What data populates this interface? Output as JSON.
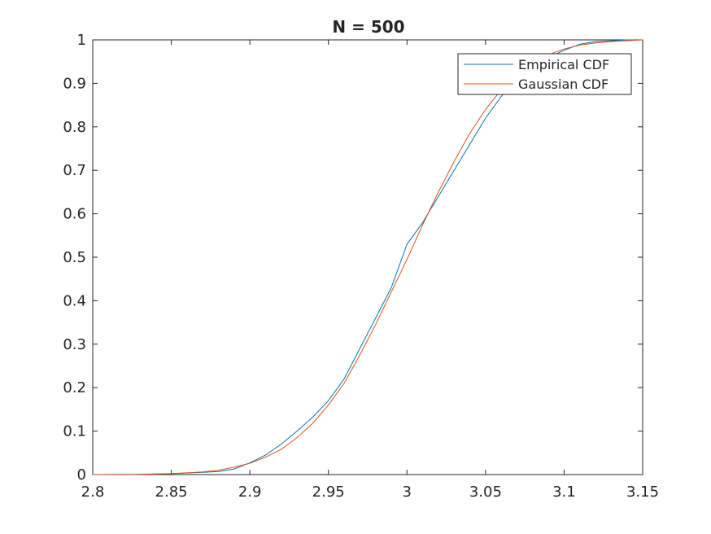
{
  "chart_data": {
    "type": "line",
    "title": "N = 500",
    "xlabel": "",
    "ylabel": "",
    "xlim": [
      2.8,
      3.15
    ],
    "ylim": [
      0,
      1
    ],
    "x_ticks": [
      "2.8",
      "2.85",
      "2.9",
      "2.95",
      "3",
      "3.05",
      "3.1",
      "3.15"
    ],
    "y_ticks": [
      "0",
      "0.1",
      "0.2",
      "0.3",
      "0.4",
      "0.5",
      "0.6",
      "0.7",
      "0.8",
      "0.9",
      "1"
    ],
    "grid": false,
    "legend_position": "top-right",
    "series": [
      {
        "name": "Empirical CDF",
        "color": "#0072BD",
        "x": [
          2.823,
          2.85,
          2.87,
          2.88,
          2.89,
          2.9,
          2.91,
          2.92,
          2.93,
          2.94,
          2.95,
          2.96,
          2.97,
          2.98,
          2.99,
          2.997,
          3.0,
          3.01,
          3.02,
          3.03,
          3.04,
          3.05,
          3.06,
          3.07,
          3.08,
          3.09,
          3.1,
          3.11,
          3.12,
          3.13,
          3.14,
          3.145
        ],
        "y": [
          0.0,
          0.002,
          0.005,
          0.007,
          0.013,
          0.027,
          0.045,
          0.07,
          0.1,
          0.132,
          0.17,
          0.22,
          0.29,
          0.36,
          0.43,
          0.5,
          0.53,
          0.58,
          0.64,
          0.7,
          0.76,
          0.82,
          0.87,
          0.91,
          0.94,
          0.96,
          0.976,
          0.99,
          0.996,
          0.998,
          1.0,
          1.0
        ]
      },
      {
        "name": "Gaussian CDF",
        "color": "#D95319",
        "x": [
          2.8,
          2.83,
          2.85,
          2.87,
          2.88,
          2.89,
          2.9,
          2.91,
          2.92,
          2.93,
          2.94,
          2.95,
          2.96,
          2.97,
          2.98,
          2.99,
          3.0,
          3.01,
          3.02,
          3.03,
          3.04,
          3.05,
          3.06,
          3.07,
          3.08,
          3.09,
          3.1,
          3.11,
          3.12,
          3.13,
          3.15
        ],
        "y": [
          0.0,
          0.0005,
          0.002,
          0.006,
          0.01,
          0.017,
          0.026,
          0.04,
          0.058,
          0.085,
          0.118,
          0.16,
          0.21,
          0.275,
          0.345,
          0.42,
          0.495,
          0.575,
          0.65,
          0.72,
          0.785,
          0.84,
          0.885,
          0.92,
          0.948,
          0.966,
          0.979,
          0.988,
          0.993,
          0.996,
          1.0
        ]
      }
    ]
  }
}
